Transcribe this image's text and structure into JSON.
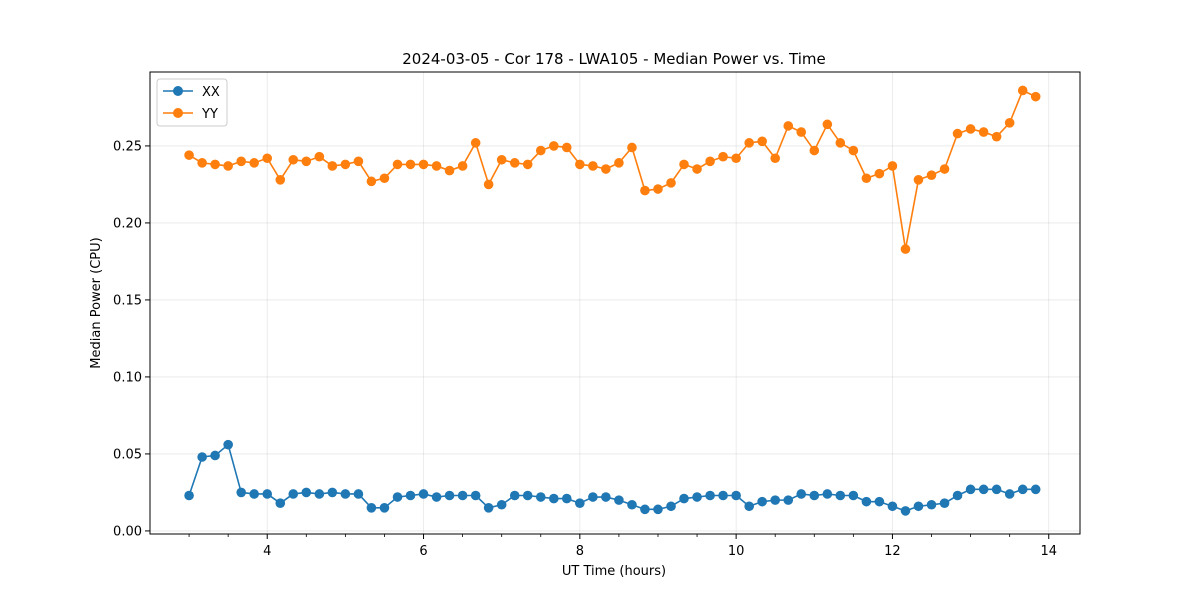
{
  "chart_data": {
    "type": "line",
    "title": "2024-03-05 - Cor 178 - LWA105 - Median Power vs. Time",
    "xlabel": "UT Time (hours)",
    "ylabel": "Median Power (CPU)",
    "xlim": [
      2.5,
      14.4
    ],
    "ylim": [
      -0.002,
      0.298
    ],
    "xticks": [
      4,
      6,
      8,
      10,
      12,
      14
    ],
    "xtick_labels": [
      "4",
      "6",
      "8",
      "10",
      "12",
      "14"
    ],
    "yticks": [
      0.0,
      0.05,
      0.1,
      0.15,
      0.2,
      0.25
    ],
    "ytick_labels": [
      "0.00",
      "0.05",
      "0.10",
      "0.15",
      "0.20",
      "0.25"
    ],
    "grid": true,
    "legend_position": "top-left",
    "x": [
      3.0,
      3.167,
      3.333,
      3.5,
      3.667,
      3.833,
      4.0,
      4.167,
      4.333,
      4.5,
      4.667,
      4.833,
      5.0,
      5.167,
      5.333,
      5.5,
      5.667,
      5.833,
      6.0,
      6.167,
      6.333,
      6.5,
      6.667,
      6.833,
      7.0,
      7.167,
      7.333,
      7.5,
      7.667,
      7.833,
      8.0,
      8.167,
      8.333,
      8.5,
      8.667,
      8.833,
      9.0,
      9.167,
      9.333,
      9.5,
      9.667,
      9.833,
      10.0,
      10.167,
      10.333,
      10.5,
      10.667,
      10.833,
      11.0,
      11.167,
      11.333,
      11.5,
      11.667,
      11.833,
      12.0,
      12.167,
      12.333,
      12.5,
      12.667,
      12.833,
      13.0,
      13.167,
      13.333,
      13.5,
      13.667,
      13.833
    ],
    "series": [
      {
        "name": "XX",
        "color": "#1f77b4",
        "values": [
          0.023,
          0.048,
          0.049,
          0.056,
          0.025,
          0.024,
          0.024,
          0.018,
          0.024,
          0.025,
          0.024,
          0.025,
          0.024,
          0.024,
          0.015,
          0.015,
          0.022,
          0.023,
          0.024,
          0.022,
          0.023,
          0.023,
          0.023,
          0.015,
          0.017,
          0.023,
          0.023,
          0.022,
          0.021,
          0.021,
          0.018,
          0.022,
          0.022,
          0.02,
          0.017,
          0.014,
          0.014,
          0.016,
          0.021,
          0.022,
          0.023,
          0.023,
          0.023,
          0.016,
          0.019,
          0.02,
          0.02,
          0.024,
          0.023,
          0.024,
          0.023,
          0.023,
          0.019,
          0.019,
          0.016,
          0.013,
          0.016,
          0.017,
          0.018,
          0.023,
          0.027,
          0.027,
          0.027,
          0.024,
          0.027,
          0.027
        ]
      },
      {
        "name": "YY",
        "color": "#ff7f0e",
        "values": [
          0.244,
          0.239,
          0.238,
          0.237,
          0.24,
          0.239,
          0.242,
          0.228,
          0.241,
          0.24,
          0.243,
          0.237,
          0.238,
          0.24,
          0.227,
          0.229,
          0.238,
          0.238,
          0.238,
          0.237,
          0.234,
          0.237,
          0.252,
          0.225,
          0.241,
          0.239,
          0.238,
          0.247,
          0.25,
          0.249,
          0.238,
          0.237,
          0.235,
          0.239,
          0.249,
          0.221,
          0.222,
          0.226,
          0.238,
          0.235,
          0.24,
          0.243,
          0.242,
          0.252,
          0.253,
          0.242,
          0.263,
          0.259,
          0.247,
          0.264,
          0.252,
          0.247,
          0.229,
          0.232,
          0.237,
          0.183,
          0.228,
          0.231,
          0.235,
          0.258,
          0.261,
          0.259,
          0.256,
          0.265,
          0.286,
          0.282
        ]
      }
    ]
  }
}
